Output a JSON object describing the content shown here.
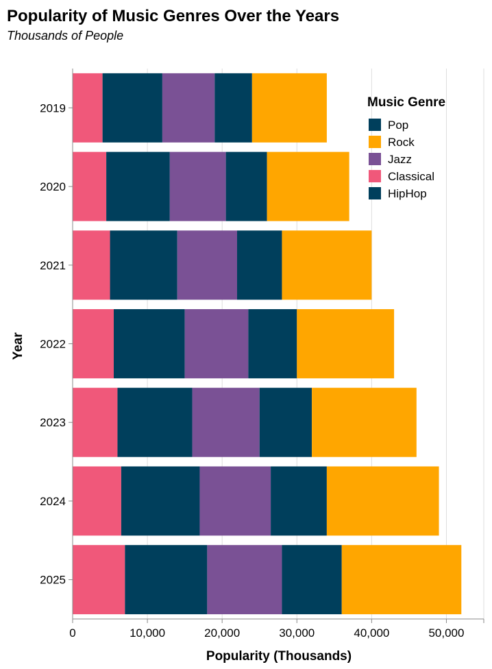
{
  "chart_data": {
    "type": "bar",
    "orientation": "horizontal",
    "stacked": true,
    "title": "Popularity of Music Genres Over the Years",
    "subtitle": "Thousands of People",
    "xlabel": "Popularity (Thousands)",
    "ylabel": "Year",
    "xlim": [
      0,
      55000
    ],
    "x_ticks": [
      0,
      10000,
      20000,
      30000,
      40000,
      50000
    ],
    "x_tick_labels": [
      "0",
      "10,000",
      "20,000",
      "30,000",
      "40,000",
      "50,000"
    ],
    "categories": [
      "2019",
      "2020",
      "2021",
      "2022",
      "2023",
      "2024",
      "2025"
    ],
    "series": [
      {
        "name": "Classical",
        "color": "#F0587A",
        "values": [
          4000,
          4500,
          5000,
          5500,
          6000,
          6500,
          7000
        ]
      },
      {
        "name": "Pop",
        "color": "#003F5C",
        "values": [
          8000,
          8500,
          9000,
          9500,
          10000,
          10500,
          11000
        ]
      },
      {
        "name": "Jazz",
        "color": "#7A5195",
        "values": [
          7000,
          7500,
          8000,
          8500,
          9000,
          9500,
          10000
        ]
      },
      {
        "name": "HipHop",
        "color": "#003F5C",
        "values": [
          5000,
          5500,
          6000,
          6500,
          7000,
          7500,
          8000
        ]
      },
      {
        "name": "Rock",
        "color": "#FFA600",
        "values": [
          10000,
          11000,
          12000,
          13000,
          14000,
          15000,
          16000
        ]
      }
    ],
    "grid": true,
    "legend": {
      "title": "Music Genre",
      "position": "top-right",
      "entries": [
        {
          "label": "Pop",
          "color": "#003F5C"
        },
        {
          "label": "Rock",
          "color": "#FFA600"
        },
        {
          "label": "Jazz",
          "color": "#7A5195"
        },
        {
          "label": "Classical",
          "color": "#F0587A"
        },
        {
          "label": "HipHop",
          "color": "#003F5C"
        }
      ]
    }
  }
}
